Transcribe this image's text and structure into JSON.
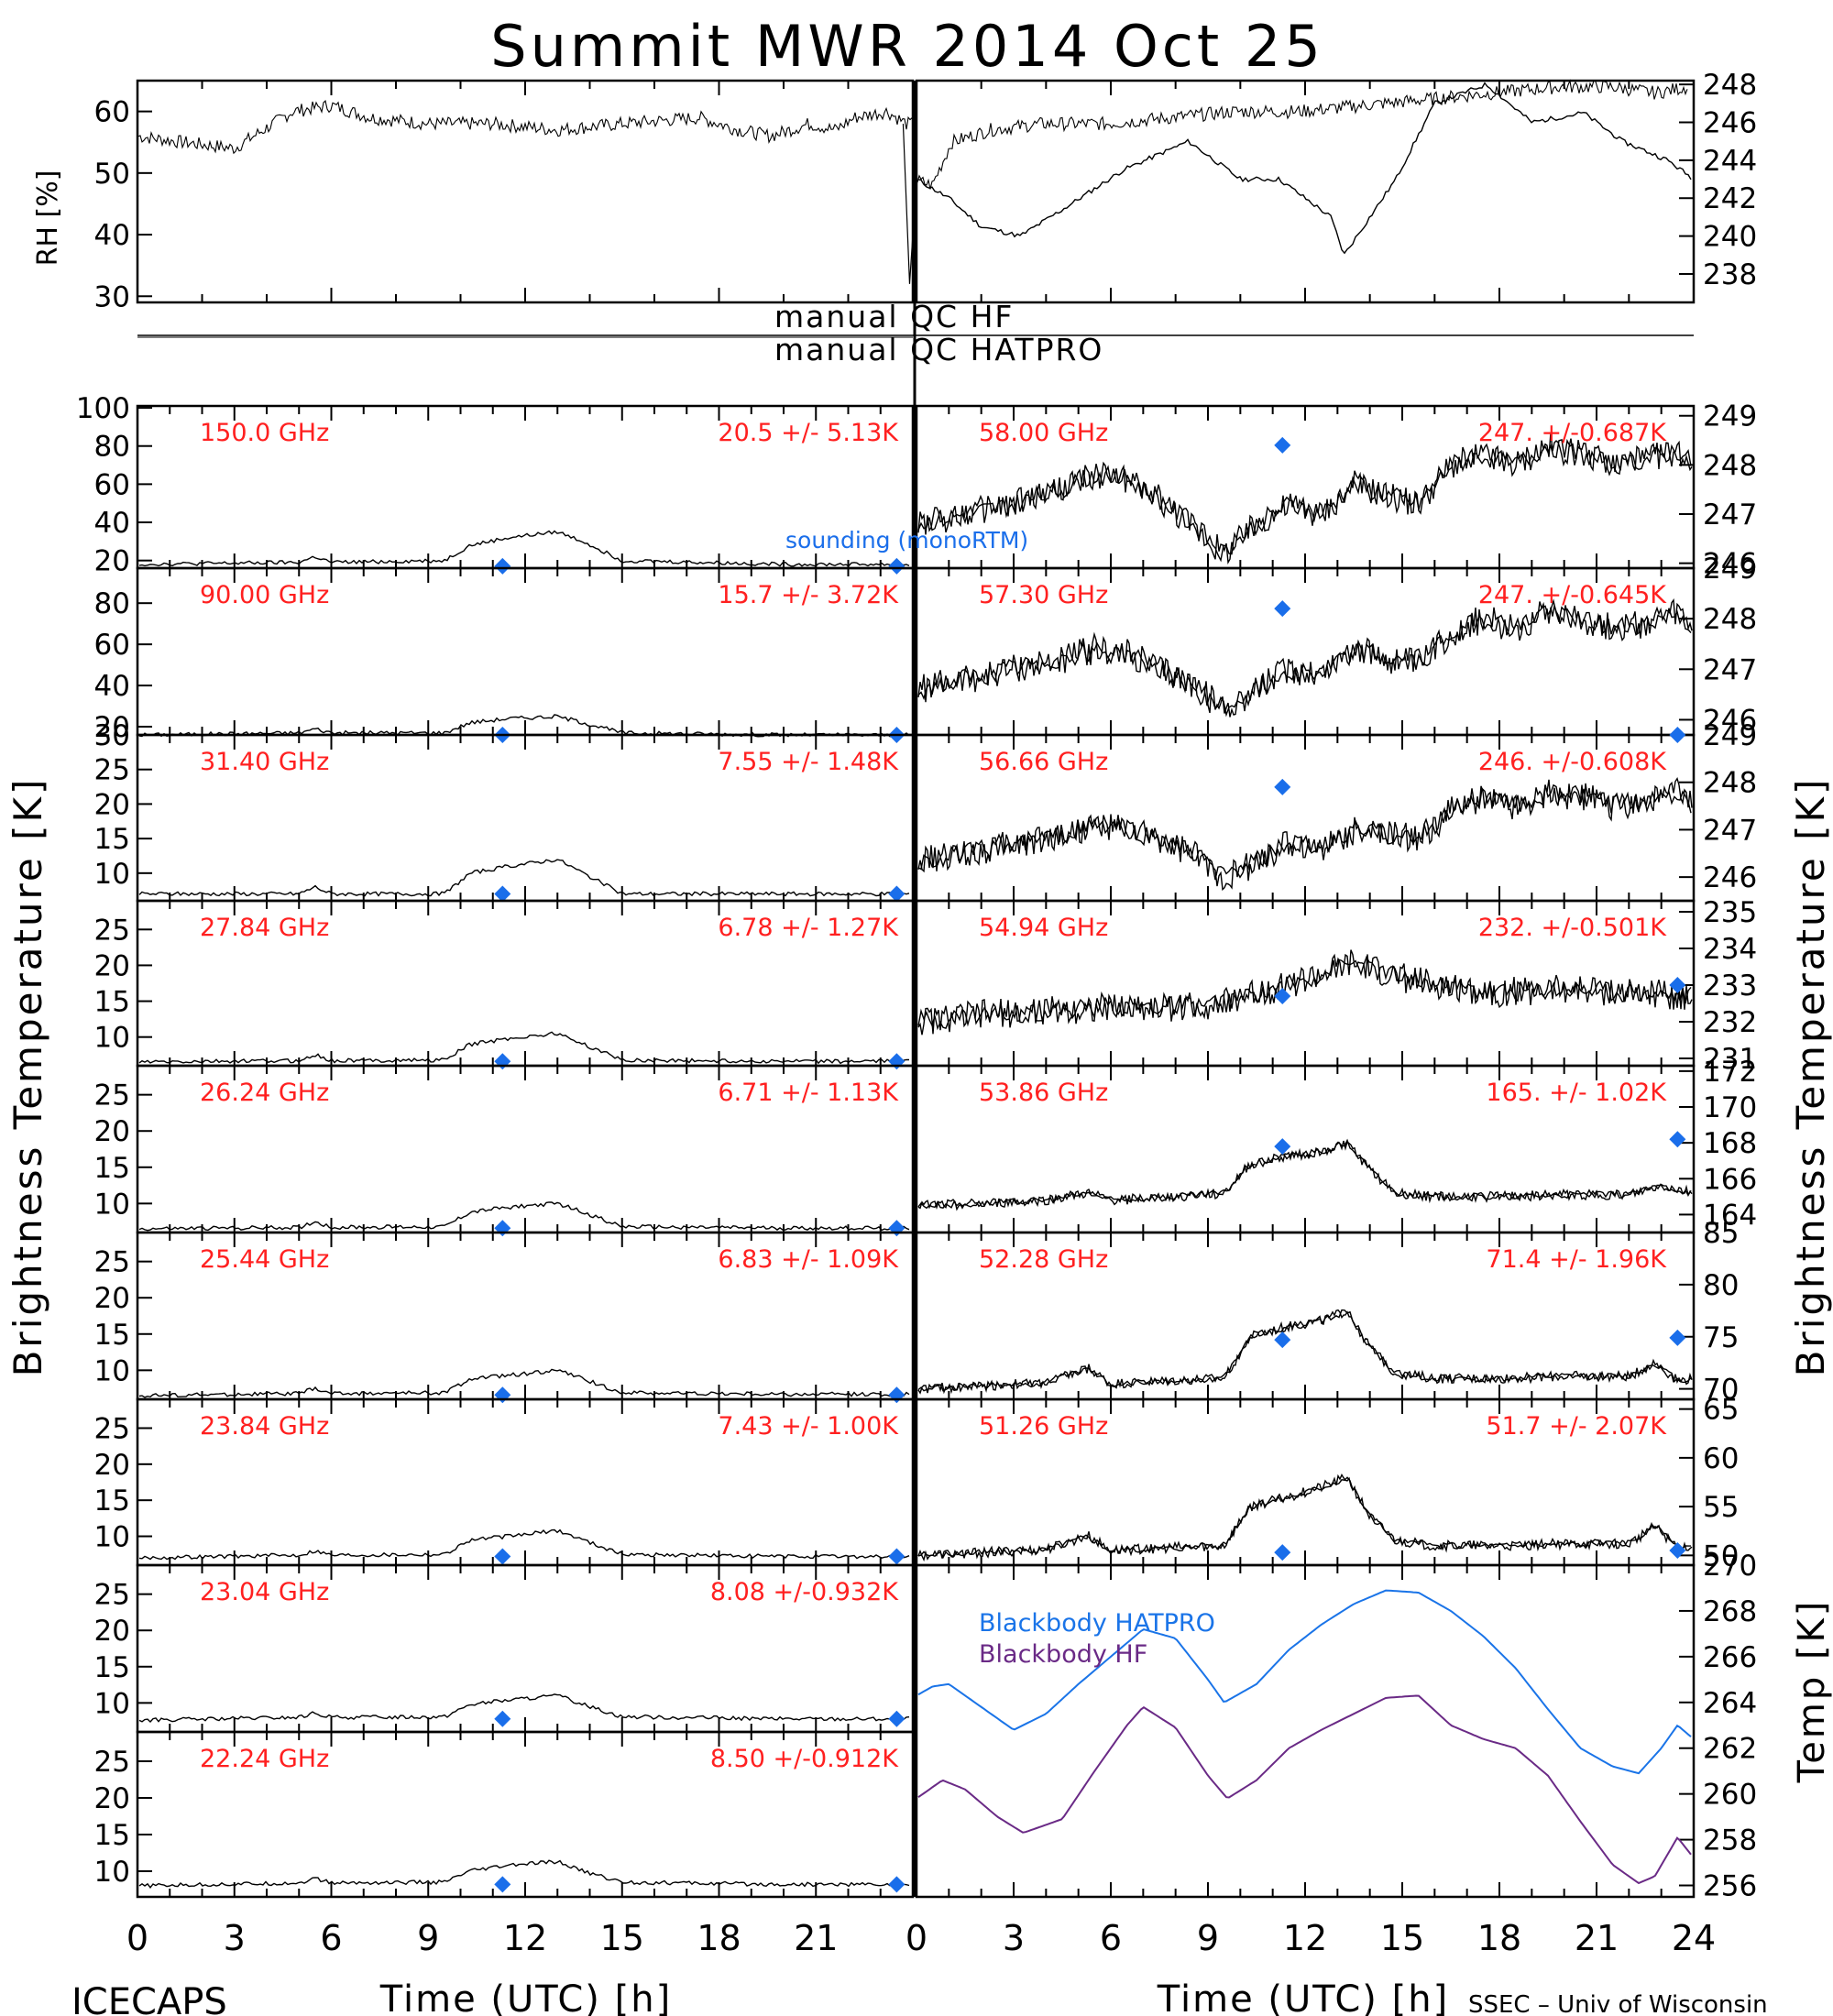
{
  "page": {
    "title": "Summit MWR 2014 Oct 25",
    "footer_left": "ICECAPS",
    "footer_right": "SSEC – Univ of Wisconsin",
    "xlabel": "Time (UTC) [h]",
    "ylabel_tb": "Brightness Temperature [K]",
    "ylabel_temp": "Temp [K]",
    "flag_hf": "manual QC HF",
    "flag_hatpro": "manual QC HATPRO",
    "sounding_label": "sounding (monoRTM)",
    "colors": {
      "trace": "#000000",
      "label": "#ff2020",
      "sounding": "#1a6eea",
      "bb_hatpro": "#1a74e8",
      "bb_hf": "#6a2a86"
    }
  },
  "chart_data": [
    {
      "id": "rh",
      "type": "scatter",
      "ylabel": "RH [%]",
      "xlim": [
        0,
        12
      ],
      "ylim": [
        29,
        65
      ],
      "yticks": [
        30,
        40,
        50,
        60
      ],
      "x": [
        0,
        0.7,
        1.5,
        2.4,
        3.0,
        3.6,
        4.5,
        5.5,
        6.5,
        7.5,
        8.7,
        9.3,
        9.8,
        10.4,
        10.8,
        11.1,
        11.6,
        11.9
      ],
      "y": [
        56,
        55,
        54,
        60,
        61,
        59,
        58,
        58,
        57,
        58,
        59,
        57,
        56,
        58,
        57,
        59,
        60,
        58
      ]
    },
    {
      "id": "rh-right",
      "type": "scatter",
      "xlim": [
        12,
        24
      ],
      "ylim": [
        29,
        65
      ],
      "x": [
        12.0,
        12.3,
        12.6,
        13.2,
        14.0,
        15.0,
        16.0,
        17.0,
        18.0,
        19.0,
        20.0,
        21.0,
        22.0,
        22.8,
        23.5,
        24.0
      ],
      "y": [
        49,
        48,
        55,
        57,
        58,
        58,
        59,
        60,
        60,
        61,
        62,
        63,
        64,
        64,
        63,
        64
      ]
    },
    {
      "id": "temp",
      "type": "line",
      "ylabel": "Temp [K]",
      "xlim": [
        12,
        24
      ],
      "ylim": [
        236.5,
        248.2
      ],
      "yticks": [
        238,
        240,
        242,
        244,
        246,
        248
      ],
      "x": [
        12.0,
        12.5,
        13.0,
        13.6,
        14.3,
        15.2,
        16.2,
        17.0,
        17.6,
        18.4,
        18.6,
        19.4,
        20.0,
        20.8,
        21.5,
        22.3,
        22.9,
        23.6,
        24.0
      ],
      "y": [
        243.0,
        242.0,
        240.5,
        240.0,
        241.5,
        243.5,
        245.0,
        243.0,
        243.0,
        241.0,
        239.0,
        243.0,
        247.0,
        248.0,
        246.0,
        246.5,
        245.0,
        244.0,
        243.0
      ]
    },
    {
      "id": "hf-150",
      "type": "line",
      "freq": "150.0 GHz",
      "stats": "20.5 +/-  5.13K",
      "xlim": [
        0,
        24
      ],
      "ylim": [
        16,
        101
      ],
      "yticks": [
        20,
        40,
        60,
        80,
        100
      ],
      "x": [
        0,
        5,
        5.5,
        6,
        9.5,
        10.3,
        11.5,
        13,
        13.8,
        15,
        20,
        24
      ],
      "y": [
        18,
        19,
        22,
        19,
        20,
        28,
        32,
        35,
        30,
        20,
        18,
        18
      ],
      "sounding": [
        [
          11.3,
          17
        ],
        [
          23.5,
          17
        ]
      ]
    },
    {
      "id": "hf-90",
      "type": "line",
      "freq": "90.00 GHz",
      "stats": "15.7 +/-  3.72K",
      "xlim": [
        0,
        24
      ],
      "ylim": [
        16,
        97
      ],
      "yticks": [
        20,
        40,
        60,
        80
      ],
      "x": [
        0,
        5,
        5.5,
        6,
        9.5,
        10.3,
        11.5,
        13,
        13.8,
        15,
        20,
        24
      ],
      "y": [
        16,
        17,
        19,
        17,
        17,
        22,
        24,
        25,
        22,
        17,
        16,
        16
      ],
      "sounding": [
        [
          11.3,
          16
        ],
        [
          23.5,
          16
        ]
      ]
    },
    {
      "id": "hf-3140",
      "type": "line",
      "freq": "31.40 GHz",
      "stats": "7.55 +/- 1.48K",
      "xlim": [
        0,
        24
      ],
      "ylim": [
        6,
        30
      ],
      "yticks": [
        10,
        15,
        20,
        25,
        30
      ],
      "x": [
        0,
        5,
        5.5,
        6,
        9.5,
        10.3,
        11.5,
        13,
        13.8,
        15,
        20,
        24
      ],
      "y": [
        7,
        7,
        8,
        7,
        7,
        10,
        11,
        12,
        10,
        7,
        7,
        7
      ],
      "sounding": [
        [
          11.3,
          7
        ],
        [
          23.5,
          7
        ]
      ]
    },
    {
      "id": "hf-2784",
      "type": "line",
      "freq": "27.84 GHz",
      "stats": "6.78 +/- 1.27K",
      "xlim": [
        0,
        24
      ],
      "ylim": [
        6,
        29
      ],
      "yticks": [
        10,
        15,
        20,
        25
      ],
      "x": [
        0,
        5,
        5.5,
        6,
        9.5,
        10.3,
        11.5,
        13,
        13.8,
        15,
        20,
        24
      ],
      "y": [
        6.5,
        6.7,
        7.5,
        6.7,
        6.8,
        9,
        9.8,
        10.5,
        9,
        6.8,
        6.6,
        6.6
      ],
      "sounding": [
        [
          11.3,
          6.6
        ],
        [
          23.5,
          6.6
        ]
      ]
    },
    {
      "id": "hf-2624",
      "type": "line",
      "freq": "26.24 GHz",
      "stats": "6.71 +/- 1.13K",
      "xlim": [
        0,
        24
      ],
      "ylim": [
        6,
        29
      ],
      "yticks": [
        10,
        15,
        20,
        25
      ],
      "x": [
        0,
        5,
        5.5,
        6,
        9.5,
        10.3,
        11.5,
        13,
        13.8,
        15,
        20,
        24
      ],
      "y": [
        6.5,
        6.7,
        7.5,
        6.7,
        6.8,
        8.8,
        9.5,
        10,
        8.8,
        6.8,
        6.6,
        6.6
      ],
      "sounding": [
        [
          11.3,
          6.6
        ],
        [
          23.5,
          6.6
        ]
      ]
    },
    {
      "id": "hf-2544",
      "type": "line",
      "freq": "25.44 GHz",
      "stats": "6.83 +/- 1.09K",
      "xlim": [
        0,
        24
      ],
      "ylim": [
        6,
        29
      ],
      "yticks": [
        10,
        15,
        20,
        25
      ],
      "x": [
        0,
        5,
        5.5,
        6,
        9.5,
        10.3,
        11.5,
        13,
        13.8,
        15,
        20,
        24
      ],
      "y": [
        6.5,
        6.8,
        7.5,
        6.8,
        6.9,
        8.8,
        9.3,
        10,
        8.8,
        6.9,
        6.7,
        6.7
      ],
      "sounding": [
        [
          11.3,
          6.6
        ],
        [
          23.5,
          6.6
        ]
      ]
    },
    {
      "id": "hf-2384",
      "type": "line",
      "freq": "23.84 GHz",
      "stats": "7.43 +/- 1.00K",
      "xlim": [
        0,
        24
      ],
      "ylim": [
        6,
        29
      ],
      "yticks": [
        10,
        15,
        20,
        25
      ],
      "x": [
        0,
        5,
        5.5,
        6,
        9.5,
        10.3,
        11.5,
        13,
        13.8,
        15,
        20,
        24
      ],
      "y": [
        7,
        7.4,
        8,
        7.4,
        7.5,
        9.5,
        10,
        10.8,
        9.5,
        7.5,
        7.2,
        7.2
      ],
      "sounding": [
        [
          11.3,
          7.2
        ],
        [
          23.5,
          7.2
        ]
      ]
    },
    {
      "id": "hf-2304",
      "type": "line",
      "freq": "23.04 GHz",
      "stats": "8.08 +/-0.932K",
      "xlim": [
        0,
        24
      ],
      "ylim": [
        6,
        29
      ],
      "yticks": [
        10,
        15,
        20,
        25
      ],
      "x": [
        0,
        5,
        5.5,
        6,
        9.5,
        10.3,
        11.5,
        13,
        13.8,
        15,
        20,
        24
      ],
      "y": [
        7.6,
        8,
        8.6,
        8,
        8.1,
        9.8,
        10.4,
        11,
        9.8,
        8.1,
        7.8,
        7.8
      ],
      "sounding": [
        [
          11.3,
          7.8
        ],
        [
          23.5,
          7.8
        ]
      ]
    },
    {
      "id": "hf-2224",
      "type": "line",
      "freq": "22.24 GHz",
      "stats": "8.50 +/-0.912K",
      "xlim": [
        0,
        24
      ],
      "ylim": [
        6.5,
        29
      ],
      "yticks": [
        10,
        15,
        20,
        25
      ],
      "x": [
        0,
        5,
        5.5,
        6,
        9.5,
        10.3,
        11.5,
        13,
        13.8,
        15,
        20,
        24
      ],
      "y": [
        8,
        8.4,
        9,
        8.4,
        8.5,
        10,
        10.8,
        11.3,
        10,
        8.5,
        8.2,
        8.2
      ],
      "sounding": [
        [
          11.3,
          8.2
        ],
        [
          23.5,
          8.2
        ]
      ]
    },
    {
      "id": "hp-5800",
      "type": "line",
      "freq": "58.00 GHz",
      "stats": "247. +/-0.687K",
      "xlim": [
        0,
        24
      ],
      "ylim": [
        245.9,
        249.2
      ],
      "yticks": [
        246,
        247,
        248,
        249
      ],
      "x": [
        0,
        1.5,
        3,
        4.5,
        5.5,
        6.5,
        7.5,
        8.5,
        9.5,
        10.5,
        11.5,
        12.5,
        13.5,
        14.5,
        15.5,
        16.5,
        17.5,
        18.5,
        19.5,
        20.5,
        21.5,
        22.5,
        23.5,
        24
      ],
      "y": [
        246.8,
        247.0,
        247.2,
        247.5,
        247.8,
        247.7,
        247.3,
        246.8,
        246.2,
        246.8,
        247.2,
        247.0,
        247.6,
        247.4,
        247.2,
        248.0,
        248.2,
        248.0,
        248.4,
        248.2,
        248.0,
        248.1,
        248.3,
        248.0
      ],
      "sounding": [
        [
          11.3,
          248.4
        ]
      ]
    },
    {
      "id": "hp-5730",
      "type": "line",
      "freq": "57.30 GHz",
      "stats": "247. +/-0.645K",
      "xlim": [
        0,
        24
      ],
      "ylim": [
        245.7,
        249.0
      ],
      "yticks": [
        246,
        247,
        248,
        249
      ],
      "x": [
        0,
        1.5,
        3,
        4.5,
        5.5,
        6.5,
        7.5,
        8.5,
        9.5,
        10.5,
        11.5,
        12.5,
        13.5,
        14.5,
        15.5,
        16.5,
        17.5,
        18.5,
        19.5,
        20.5,
        21.5,
        22.5,
        23.5,
        24
      ],
      "y": [
        246.6,
        246.8,
        247.0,
        247.2,
        247.4,
        247.3,
        247.0,
        246.7,
        246.2,
        246.6,
        247.0,
        246.9,
        247.4,
        247.2,
        247.1,
        247.7,
        248.0,
        247.8,
        248.2,
        248.0,
        247.8,
        247.9,
        248.1,
        247.8
      ],
      "sounding": [
        [
          11.3,
          248.2
        ]
      ]
    },
    {
      "id": "hp-5666",
      "type": "line",
      "freq": "56.66 GHz",
      "stats": "246. +/-0.608K",
      "xlim": [
        0,
        24
      ],
      "ylim": [
        245.5,
        249.0
      ],
      "yticks": [
        246,
        247,
        248,
        249
      ],
      "x": [
        0,
        1.5,
        3,
        4.5,
        5.5,
        6.5,
        7.5,
        8.5,
        9.5,
        10.5,
        11.5,
        12.5,
        13.5,
        14.5,
        15.5,
        16.5,
        17.5,
        18.5,
        19.5,
        20.5,
        21.5,
        22.5,
        23.5,
        24
      ],
      "y": [
        246.3,
        246.5,
        246.7,
        246.9,
        247.1,
        247.0,
        246.8,
        246.5,
        246.0,
        246.3,
        246.7,
        246.6,
        247.0,
        246.9,
        246.8,
        247.4,
        247.7,
        247.5,
        247.8,
        247.7,
        247.5,
        247.6,
        247.8,
        247.5
      ],
      "sounding": [
        [
          11.3,
          247.9
        ],
        [
          23.5,
          249.0
        ]
      ]
    },
    {
      "id": "hp-5494",
      "type": "line",
      "freq": "54.94 GHz",
      "stats": "232. +/-0.501K",
      "xlim": [
        0,
        24
      ],
      "ylim": [
        230.8,
        235.3
      ],
      "yticks": [
        231,
        232,
        233,
        234,
        235
      ],
      "x": [
        0,
        2,
        4,
        6,
        8,
        9.5,
        10.5,
        11.5,
        12.5,
        13.5,
        14.5,
        16,
        18,
        20,
        22,
        24
      ],
      "y": [
        232.0,
        232.2,
        232.3,
        232.4,
        232.4,
        232.5,
        232.8,
        233.0,
        233.3,
        233.6,
        233.3,
        233.0,
        232.8,
        232.9,
        232.8,
        232.7
      ],
      "sounding": [
        [
          11.3,
          232.7
        ],
        [
          23.5,
          233.0
        ]
      ]
    },
    {
      "id": "hp-5386",
      "type": "line",
      "freq": "53.86 GHz",
      "stats": "165. +/- 1.02K",
      "xlim": [
        0,
        24
      ],
      "ylim": [
        163,
        172.3
      ],
      "yticks": [
        164,
        166,
        168,
        170,
        172
      ],
      "x": [
        0,
        2,
        4,
        5.3,
        6,
        8,
        9.5,
        10.3,
        11.5,
        12.5,
        13.3,
        14,
        14.8,
        16,
        18,
        20,
        22,
        23,
        24
      ],
      "y": [
        164.5,
        164.6,
        164.8,
        165.2,
        164.8,
        165,
        165.2,
        166.8,
        167.3,
        167.5,
        168.0,
        166.5,
        165.2,
        165.0,
        165.0,
        165.1,
        165.1,
        165.6,
        165.2
      ],
      "sounding": [
        [
          11.3,
          167.8
        ],
        [
          23.5,
          168.2
        ]
      ]
    },
    {
      "id": "hp-5228",
      "type": "line",
      "freq": "52.28 GHz",
      "stats": "71.4 +/- 1.96K",
      "xlim": [
        0,
        24
      ],
      "ylim": [
        69,
        85
      ],
      "yticks": [
        70,
        75,
        80,
        85
      ],
      "x": [
        0,
        2,
        4,
        5.3,
        6,
        8,
        9.5,
        10.3,
        11.5,
        12.5,
        13.3,
        14,
        14.8,
        16,
        18,
        20,
        22,
        22.8,
        23.5,
        24
      ],
      "y": [
        70,
        70.3,
        70.6,
        72,
        70.5,
        70.8,
        71,
        75,
        76,
        76.5,
        77.5,
        74,
        71.5,
        71,
        71,
        71.2,
        71.2,
        72.5,
        70.8,
        71
      ],
      "sounding": [
        [
          11.3,
          74.7
        ],
        [
          23.5,
          74.9
        ]
      ]
    },
    {
      "id": "hp-5126",
      "type": "line",
      "freq": "51.26 GHz",
      "stats": "51.7 +/- 2.07K",
      "xlim": [
        0,
        24
      ],
      "ylim": [
        49,
        66
      ],
      "yticks": [
        50,
        55,
        60,
        65
      ],
      "x": [
        0,
        2,
        4,
        5.3,
        6,
        8,
        9.5,
        10.3,
        11.5,
        12.5,
        13.3,
        14,
        14.8,
        16,
        18,
        20,
        22,
        22.8,
        23.5,
        24
      ],
      "y": [
        50,
        50.3,
        50.6,
        52,
        50.5,
        50.8,
        51,
        55,
        56,
        57,
        58,
        54,
        51.5,
        51,
        51,
        51.2,
        51.2,
        53,
        50.8,
        51
      ],
      "sounding": [
        [
          11.3,
          50.3
        ],
        [
          23.5,
          50.5
        ]
      ]
    },
    {
      "id": "blackbody",
      "type": "line",
      "ylabel": "Temp [K]",
      "xlim": [
        0,
        24
      ],
      "ylim": [
        255.5,
        270
      ],
      "yticks": [
        256,
        258,
        260,
        262,
        264,
        266,
        268,
        270
      ],
      "series": [
        {
          "name": "Blackbody HATPRO",
          "x": [
            0,
            0.5,
            1.0,
            2.0,
            3.0,
            4.0,
            5.0,
            6.0,
            7.0,
            8.0,
            9.0,
            9.5,
            10.5,
            11.5,
            12.5,
            13.5,
            14.5,
            15.5,
            16.5,
            17.5,
            18.5,
            19.5,
            20.5,
            21.5,
            22.3,
            23.0,
            23.5,
            24.0
          ],
          "y": [
            264.3,
            264.7,
            264.8,
            263.8,
            262.8,
            263.5,
            264.8,
            266.0,
            267.2,
            266.8,
            265.0,
            264.0,
            264.8,
            266.3,
            267.4,
            268.3,
            268.9,
            268.8,
            268.0,
            266.9,
            265.5,
            263.7,
            262.0,
            261.2,
            260.9,
            262.0,
            263.0,
            262.4
          ]
        },
        {
          "name": "Blackbody HF",
          "x": [
            0,
            0.8,
            1.5,
            2.5,
            3.3,
            4.5,
            5.5,
            6.5,
            7.0,
            8.0,
            9.0,
            9.6,
            10.5,
            11.5,
            12.5,
            13.5,
            14.5,
            15.5,
            16.5,
            17.5,
            18.5,
            19.5,
            20.5,
            21.5,
            22.3,
            22.8,
            23.5,
            24.0
          ],
          "y": [
            259.8,
            260.6,
            260.2,
            259.0,
            258.3,
            258.9,
            261.0,
            263.0,
            263.8,
            262.9,
            260.8,
            259.8,
            260.6,
            262.0,
            262.8,
            263.5,
            264.2,
            264.3,
            263.0,
            262.4,
            262.0,
            260.8,
            258.8,
            256.9,
            256.1,
            256.4,
            258.1,
            257.2
          ]
        }
      ]
    }
  ]
}
